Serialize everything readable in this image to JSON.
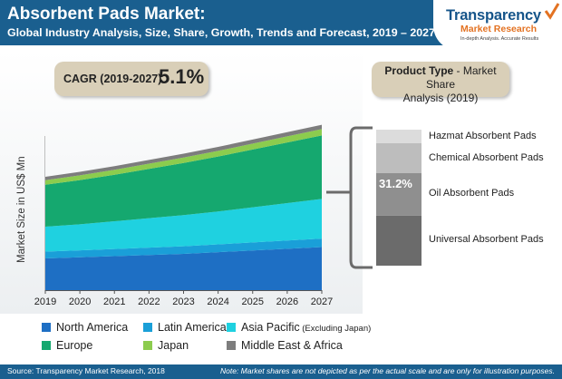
{
  "header": {
    "title": "Absorbent Pads Market:",
    "subtitle": "Global Industry Analysis, Size, Share, Growth, Trends and Forecast, 2019 – 2027"
  },
  "logo": {
    "name": "Transparency",
    "sub": "Market Research",
    "tagline": "In-depth Analysis. Accurate Results"
  },
  "cagr": {
    "label": "CAGR (2019-2027)",
    "value": "5.1%"
  },
  "product_type": {
    "label_bold": "Product Type",
    "label_rest": " - Market Share",
    "label_line2": "Analysis (2019)"
  },
  "footer": {
    "source": "Source: Transparency Market Research, 2018",
    "note": "Note: Market shares are not depicted as per the actual scale and are only for illustration purposes."
  },
  "colors": {
    "north_america": "#1e6fc4",
    "latin_america": "#1a9fd8",
    "asia_pacific": "#1fd1e0",
    "europe": "#15a86f",
    "japan": "#8ccc4e",
    "middle_east_africa": "#7d7d7d",
    "header": "#1a5f8f"
  },
  "legend": [
    {
      "label": "North America",
      "note": "",
      "color": "#1e6fc4"
    },
    {
      "label": "Latin America",
      "note": "",
      "color": "#1a9fd8"
    },
    {
      "label": "Asia Pacific",
      "note": "(Excluding Japan)",
      "color": "#1fd1e0"
    },
    {
      "label": "Europe",
      "note": "",
      "color": "#15a86f"
    },
    {
      "label": "Japan",
      "note": "",
      "color": "#8ccc4e"
    },
    {
      "label": "Middle East & Africa",
      "note": "",
      "color": "#7d7d7d"
    }
  ],
  "chart_data": [
    {
      "type": "area",
      "stacked": true,
      "title": "",
      "xlabel": "",
      "ylabel": "Market Size in US$ Mn",
      "x": [
        "2019",
        "2020",
        "2021",
        "2022",
        "2023",
        "2024",
        "2025",
        "2026",
        "2027"
      ],
      "y_ticks_shown": false,
      "series": [
        {
          "name": "North America",
          "values": [
            28,
            29,
            30,
            31,
            32,
            33.5,
            35,
            36.5,
            38
          ]
        },
        {
          "name": "Latin America",
          "values": [
            6,
            6.1,
            6.3,
            6.5,
            6.7,
            6.9,
            7.1,
            7.3,
            7.5
          ]
        },
        {
          "name": "Asia Pacific (Excluding Japan)",
          "values": [
            22,
            23,
            24.5,
            26,
            27.5,
            29,
            31,
            33,
            35
          ]
        },
        {
          "name": "Europe",
          "values": [
            37,
            39,
            41,
            43.5,
            46,
            48.5,
            51,
            53.5,
            56
          ]
        },
        {
          "name": "Japan",
          "values": [
            4,
            4.2,
            4.4,
            4.6,
            4.8,
            5,
            5.2,
            5.4,
            5.6
          ]
        },
        {
          "name": "Middle East & Africa",
          "values": [
            3,
            3.1,
            3.2,
            3.3,
            3.4,
            3.5,
            3.6,
            3.7,
            3.8
          ]
        }
      ]
    },
    {
      "type": "bar",
      "stacked": true,
      "title": "Product Type - Market Share Analysis (2019)",
      "categories": [
        "Hazmat Absorbent Pads",
        "Chemical Absorbent Pads",
        "Oil Absorbent Pads",
        "Universal Absorbent Pads"
      ],
      "values": [
        10,
        22,
        31.2,
        36.8
      ],
      "labels": [
        "",
        "",
        "31.2%",
        ""
      ],
      "colors": [
        "#dcdcdc",
        "#bdbdbd",
        "#8f8f8f",
        "#6b6b6b"
      ]
    }
  ]
}
